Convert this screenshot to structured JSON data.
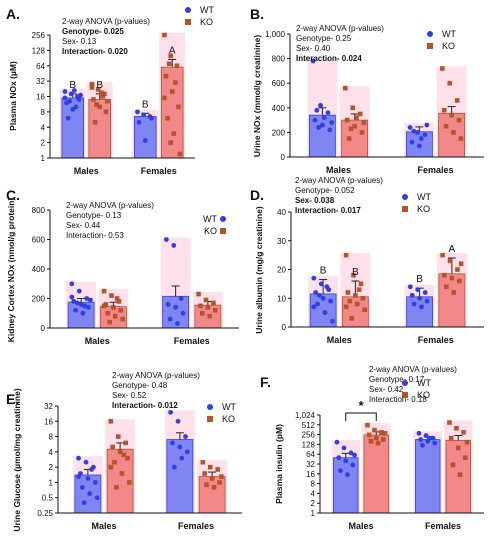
{
  "colors": {
    "wt": "#2f3ee6",
    "wt_fill": "#7f86f2",
    "ko": "#b5542a",
    "ko_fill": "#f2888a",
    "pink": "#ffc6da",
    "axis": "#111111"
  },
  "chart_data": [
    {
      "type": "bar",
      "panel": "A.",
      "ylabel": "Plasma NOx (µM)",
      "categories": [
        "Males",
        "Females"
      ],
      "yscale": "log2",
      "ylim": [
        1,
        256
      ],
      "yticks": [
        1,
        2,
        4,
        8,
        16,
        32,
        64,
        128,
        256
      ],
      "ytick_labels": [
        "1",
        "2",
        "4",
        "8",
        "16",
        "32",
        "64",
        "128",
        "256"
      ],
      "series": [
        {
          "name": "WT",
          "values": [
            15,
            6.5
          ],
          "errors": [
            3,
            1
          ],
          "points": [
            [
              20,
              18,
              16,
              12,
              9,
              14,
              6,
              21,
              17,
              13,
              10,
              15
            ],
            [
              8,
              7,
              6.5,
              5,
              2.2,
              6
            ]
          ]
        },
        {
          "name": "KO",
          "values": [
            14,
            60
          ],
          "errors": [
            4,
            25
          ],
          "points": [
            [
              28,
              22,
              18,
              14,
              10,
              8,
              5,
              19,
              13,
              11,
              16,
              24
            ],
            [
              300,
              100,
              64,
              40,
              20,
              10,
              6,
              3,
              1.2,
              70,
              30,
              15,
              2
            ]
          ]
        }
      ],
      "letters": [
        [
          "B",
          "B"
        ],
        [
          "B",
          "A"
        ]
      ],
      "stats_title": "2-way ANOVA (p-values)",
      "stats": [
        {
          "label": "Genotype-",
          "value": "0.025",
          "bold": true
        },
        {
          "label": "Sex-",
          "value": "0.13",
          "bold": false
        },
        {
          "label": "Interaction-",
          "value": "0.020",
          "bold": true
        }
      ]
    },
    {
      "type": "bar",
      "panel": "B.",
      "ylabel": "Urine NOx (mmol/g creatinine)",
      "categories": [
        "Males",
        "Females"
      ],
      "yscale": "linear",
      "ylim": [
        0,
        1000
      ],
      "yticks": [
        0,
        200,
        400,
        600,
        800,
        1000
      ],
      "ytick_labels": [
        "0",
        "200",
        "400",
        "600",
        "800",
        "1,000"
      ],
      "series": [
        {
          "name": "WT",
          "values": [
            340,
            205
          ],
          "errors": [
            60,
            40
          ],
          "points": [
            [
              780,
              420,
              360,
              300,
              260,
              220,
              380,
              320,
              280,
              240
            ],
            [
              240,
              200,
              180,
              120,
              90,
              260,
              210,
              150
            ]
          ]
        },
        {
          "name": "KO",
          "values": [
            300,
            355
          ],
          "errors": [
            50,
            55
          ],
          "points": [
            [
              560,
              400,
              350,
              300,
              250,
              200,
              150,
              320,
              280,
              230
            ],
            [
              720,
              600,
              460,
              380,
              340,
              300,
              250,
              200,
              150
            ]
          ]
        }
      ],
      "letters": [],
      "stats_title": "2-way ANOVA (p-values)",
      "stats": [
        {
          "label": "Genotype-",
          "value": "0.25",
          "bold": false
        },
        {
          "label": "Sex-",
          "value": "0.40",
          "bold": false
        },
        {
          "label": "Interaction-",
          "value": "0.024",
          "bold": true
        }
      ]
    },
    {
      "type": "bar",
      "panel": "C.",
      "ylabel": "Kidney Cortex NOx (nmol/g protein)",
      "categories": [
        "Males",
        "Females"
      ],
      "yscale": "linear",
      "ylim": [
        0,
        800
      ],
      "yticks": [
        0,
        200,
        400,
        600,
        800
      ],
      "ytick_labels": [
        "0",
        "200",
        "400",
        "600",
        "800"
      ],
      "series": [
        {
          "name": "WT",
          "values": [
            175,
            215
          ],
          "errors": [
            25,
            70
          ],
          "points": [
            [
              300,
              250,
              200,
              180,
              160,
              140,
              120,
              100,
              190,
              170,
              150,
              210
            ],
            [
              600,
              560,
              200,
              160,
              140,
              100,
              60,
              30
            ]
          ]
        },
        {
          "name": "KO",
          "values": [
            145,
            155
          ],
          "errors": [
            30,
            25
          ],
          "points": [
            [
              250,
              220,
              180,
              160,
              140,
              120,
              100,
              80,
              60,
              40,
              200,
              150
            ],
            [
              230,
              190,
              170,
              150,
              140,
              120,
              100,
              80
            ]
          ]
        }
      ],
      "letters": [],
      "stats_title": "2-way ANOVA (p-values)",
      "stats": [
        {
          "label": "Genotype-",
          "value": "0.13",
          "bold": false
        },
        {
          "label": "Sex-",
          "value": "0.44",
          "bold": false
        },
        {
          "label": "Interaction-",
          "value": "0.53",
          "bold": false
        }
      ]
    },
    {
      "type": "bar",
      "panel": "D.",
      "ylabel": "Urine albumin (mg/g creatinine)",
      "categories": [
        "Males",
        "Females"
      ],
      "yscale": "linear",
      "ylim": [
        0,
        40
      ],
      "yticks": [
        0,
        10,
        20,
        30,
        40
      ],
      "ytick_labels": [
        "0",
        "10",
        "20",
        "30",
        "40"
      ],
      "series": [
        {
          "name": "WT",
          "values": [
            11.5,
            10.5
          ],
          "errors": [
            5,
            3
          ],
          "points": [
            [
              17,
              15,
              13,
              12,
              10,
              9,
              8,
              5,
              2,
              11,
              14,
              7
            ],
            [
              14,
              13,
              12,
              11,
              10,
              9,
              8,
              7
            ]
          ]
        },
        {
          "name": "KO",
          "values": [
            10.5,
            18.5
          ],
          "errors": [
            5.5,
            5.5
          ],
          "points": [
            [
              25,
              18,
              15,
              12,
              11,
              10,
              9,
              8,
              6,
              3,
              13,
              7
            ],
            [
              25,
              23,
              20,
              18,
              17,
              16,
              14,
              12,
              22
            ]
          ]
        }
      ],
      "letters": [
        [
          "B",
          "B"
        ],
        [
          "B",
          "A"
        ]
      ],
      "stats_title": "2-way ANOVA (p-values)",
      "stats": [
        {
          "label": "Genotype-",
          "value": "0.052",
          "bold": false
        },
        {
          "label": "Sex-",
          "value": "0.038",
          "bold": true
        },
        {
          "label": "Interaction-",
          "value": "0.017",
          "bold": true
        }
      ]
    },
    {
      "type": "bar",
      "panel": "E.",
      "ylabel": "Urine Glucose (µmol/mg creatinine)",
      "categories": [
        "Males",
        "Females"
      ],
      "yscale": "log2",
      "ylim": [
        0.25,
        32
      ],
      "yticks": [
        0.25,
        0.5,
        1,
        2,
        4,
        8,
        16,
        32
      ],
      "ytick_labels": [
        "0.25",
        "0.5",
        "1",
        "2",
        "4",
        "8",
        "16",
        "32"
      ],
      "series": [
        {
          "name": "WT",
          "values": [
            1.4,
            7
          ],
          "errors": [
            0.4,
            2.5
          ],
          "points": [
            [
              3,
              2.5,
              2,
              1.5,
              1.2,
              1,
              0.8,
              0.6,
              0.5,
              0.4,
              1.8,
              1.3
            ],
            [
              24,
              16,
              8,
              6,
              5,
              4,
              2,
              3
            ]
          ]
        },
        {
          "name": "KO",
          "values": [
            4.5,
            1.3
          ],
          "errors": [
            1.5,
            0.3
          ],
          "points": [
            [
              16,
              8,
              6,
              5,
              4,
              3,
              2.5,
              1.5,
              1,
              0.8,
              3.5,
              2
            ],
            [
              2.5,
              2,
              1.8,
              1.5,
              1.2,
              1,
              0.9,
              0.8,
              1.3
            ]
          ]
        }
      ],
      "letters": [],
      "stats_title": "2-way ANOVA (p-values)",
      "stats": [
        {
          "label": "Genotype-",
          "value": "0.48",
          "bold": false
        },
        {
          "label": "Sex-",
          "value": "0.52",
          "bold": false
        },
        {
          "label": "Interaction-",
          "value": "0.012",
          "bold": true
        }
      ]
    },
    {
      "type": "bar",
      "panel": "F.",
      "ylabel": "Plasma insulin (pM)",
      "categories": [
        "Males",
        "Females"
      ],
      "yscale": "log2",
      "ylim": [
        1,
        1024
      ],
      "yticks": [
        1,
        2,
        4,
        8,
        16,
        32,
        64,
        128,
        256,
        512,
        1024
      ],
      "ytick_labels": [
        "1",
        "2",
        "4",
        "8",
        "16",
        "32",
        "64",
        "128",
        "256",
        "512",
        "1,024"
      ],
      "series": [
        {
          "name": "WT",
          "values": [
            50,
            180
          ],
          "errors": [
            18,
            40
          ],
          "points": [
            [
              150,
              100,
              70,
              50,
              40,
              30,
              20,
              15,
              60
            ],
            [
              280,
              240,
              200,
              180,
              160,
              140,
              120,
              200
            ]
          ]
        },
        {
          "name": "KO",
          "values": [
            250,
            170
          ],
          "errors": [
            60,
            70
          ],
          "points": [
            [
              500,
              350,
              300,
              250,
              200,
              180,
              160,
              140,
              280
            ],
            [
              600,
              400,
              300,
              200,
              100,
              50,
              30,
              15,
              150
            ]
          ]
        }
      ],
      "letters": [],
      "significance": "*",
      "stats_title": "2-way ANOVA (p-values)",
      "stats": [
        {
          "label": "Genotype-",
          "value": "0.17",
          "bold": false
        },
        {
          "label": "Sex-",
          "value": "0.42",
          "bold": false
        },
        {
          "label": "Interaction-",
          "value": "0.18",
          "bold": false
        }
      ]
    }
  ]
}
